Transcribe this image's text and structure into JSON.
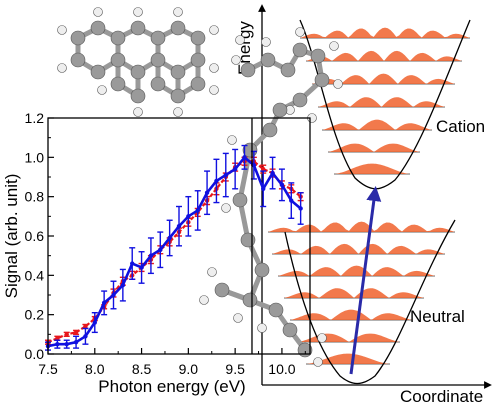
{
  "chart_data": [
    {
      "type": "line",
      "xlabel": "Photon energy (eV)",
      "ylabel": "Signal (arb. unit)",
      "xlim": [
        7.5,
        10.3
      ],
      "ylim": [
        0.0,
        1.2
      ],
      "xticks": [
        7.5,
        8.0,
        8.5,
        9.0,
        9.5,
        10.0
      ],
      "yticks": [
        0.0,
        0.2,
        0.4,
        0.6,
        0.8,
        1.0,
        1.2
      ],
      "xtick_labels": [
        "7.5",
        "8.0",
        "8.5",
        "9.0",
        "9.5",
        "10.0"
      ],
      "ytick_labels": [
        "0.0",
        "0.2",
        "0.4",
        "0.6",
        "0.8",
        "1.0",
        "1.2"
      ],
      "grid": false,
      "series": [
        {
          "color": "#e8161b",
          "marker": "dot",
          "x": [
            7.5,
            7.6,
            7.7,
            7.8,
            7.9,
            8.0,
            8.1,
            8.2,
            8.3,
            8.4,
            8.5,
            8.6,
            8.7,
            8.8,
            8.9,
            9.0,
            9.1,
            9.2,
            9.3,
            9.4,
            9.5,
            9.6,
            9.7,
            9.8,
            9.9,
            10.0,
            10.1,
            10.2
          ],
          "y": [
            0.06,
            0.08,
            0.1,
            0.11,
            0.14,
            0.18,
            0.24,
            0.31,
            0.37,
            0.4,
            0.44,
            0.48,
            0.53,
            0.57,
            0.62,
            0.67,
            0.72,
            0.78,
            0.84,
            0.9,
            0.95,
            0.98,
            0.98,
            0.94,
            0.92,
            0.86,
            0.84,
            0.8
          ],
          "err": [
            0.01,
            0.01,
            0.01,
            0.01,
            0.01,
            0.01,
            0.01,
            0.02,
            0.02,
            0.02,
            0.02,
            0.02,
            0.02,
            0.02,
            0.02,
            0.02,
            0.02,
            0.02,
            0.03,
            0.02,
            0.02,
            0.02,
            0.02,
            0.02,
            0.02,
            0.02,
            0.02,
            0.02
          ]
        },
        {
          "color": "#1010e0",
          "marker": "dot",
          "x": [
            7.5,
            7.6,
            7.7,
            7.8,
            7.9,
            8.0,
            8.1,
            8.2,
            8.3,
            8.4,
            8.5,
            8.6,
            8.7,
            8.8,
            8.9,
            9.0,
            9.1,
            9.2,
            9.3,
            9.4,
            9.5,
            9.6,
            9.7,
            9.8,
            9.9,
            10.0,
            10.1,
            10.2
          ],
          "y": [
            0.04,
            0.05,
            0.05,
            0.06,
            0.09,
            0.16,
            0.26,
            0.3,
            0.35,
            0.46,
            0.44,
            0.5,
            0.53,
            0.59,
            0.65,
            0.7,
            0.73,
            0.82,
            0.88,
            0.91,
            0.94,
            1.0,
            0.96,
            0.84,
            0.92,
            0.86,
            0.78,
            0.74
          ],
          "err": [
            0.02,
            0.02,
            0.02,
            0.03,
            0.04,
            0.05,
            0.06,
            0.07,
            0.08,
            0.08,
            0.08,
            0.09,
            0.09,
            0.09,
            0.1,
            0.1,
            0.1,
            0.11,
            0.11,
            0.11,
            0.1,
            0.06,
            0.07,
            0.09,
            0.08,
            0.08,
            0.09,
            0.08
          ]
        }
      ],
      "marker_line_x": 9.68
    },
    {
      "type": "diagram",
      "ylabel": "Energy",
      "xlabel": "Coordinate",
      "wells": [
        {
          "label": "Cation",
          "levels": 7
        },
        {
          "label": "Neutral",
          "levels": 7
        }
      ],
      "colors": {
        "fill": "#f0622d",
        "arrow": "#2a2aa8",
        "curve": "#000000"
      }
    }
  ]
}
